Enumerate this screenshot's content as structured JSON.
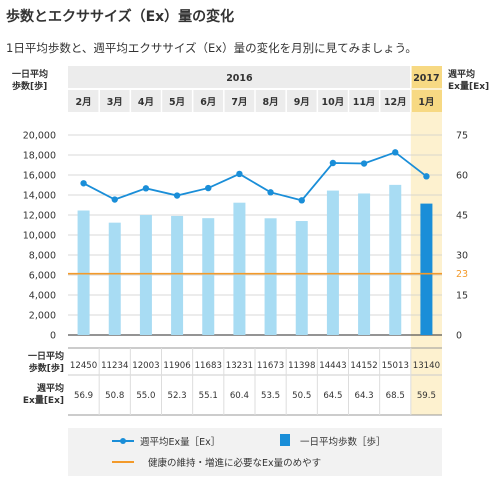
{
  "title": "歩数とエクササイズ（Ex）量の変化",
  "subtitle": "1日平均歩数と、週平均エクササイズ（Ex）量の変化を月別に見てみましょう。",
  "colors": {
    "bar": "#a8dcf3",
    "bar_highlight": "#1a8ed8",
    "line": "#1a8ed8",
    "reference": "#f39a2a",
    "highlight_bg": "#fdf1cf",
    "header_bg": "#ececec",
    "grid": "#cccccc"
  },
  "chart_data": {
    "type": "bar",
    "years": [
      {
        "label": "2016",
        "months": 11
      },
      {
        "label": "2017",
        "months": 1
      }
    ],
    "categories": [
      "2月",
      "3月",
      "4月",
      "5月",
      "6月",
      "7月",
      "8月",
      "9月",
      "10月",
      "11月",
      "12月",
      "1月"
    ],
    "highlight_index": 11,
    "left_axis_label_line1": "一日平均",
    "left_axis_label_line2": "歩数[歩]",
    "right_axis_label_line1": "週平均",
    "right_axis_label_line2": "Ex量[Ex]",
    "left_ylim": [
      0,
      20000
    ],
    "left_ticks": [
      "0",
      "2,000",
      "4,000",
      "6,000",
      "8,000",
      "10,000",
      "12,000",
      "14,000",
      "16,000",
      "18,000",
      "20,000"
    ],
    "right_ylim": [
      0,
      75
    ],
    "right_ticks": [
      "0",
      "15",
      "23",
      "30",
      "45",
      "60",
      "75"
    ],
    "reference_line": {
      "value": 23,
      "label": "23"
    },
    "series": [
      {
        "name": "一日平均歩数［歩］",
        "kind": "bar",
        "axis": "left",
        "values": [
          12450,
          11234,
          12003,
          11906,
          11683,
          13231,
          11673,
          11398,
          14443,
          14152,
          15013,
          13140
        ]
      },
      {
        "name": "週平均Ex量［Ex］",
        "kind": "line",
        "axis": "right",
        "values": [
          56.9,
          50.8,
          55.0,
          52.3,
          55.1,
          60.4,
          53.5,
          50.5,
          64.5,
          64.3,
          68.5,
          59.5
        ]
      }
    ],
    "table_row1_label_line1": "一日平均",
    "table_row1_label_line2": "歩数[歩]",
    "table_row2_label_line1": "週平均",
    "table_row2_label_line2": "Ex量[Ex]",
    "legend": {
      "line": "週平均Ex量［Ex］",
      "bar": "一日平均歩数［歩］",
      "reference": "健康の維持・増進に必要なEx量のめやす"
    }
  }
}
